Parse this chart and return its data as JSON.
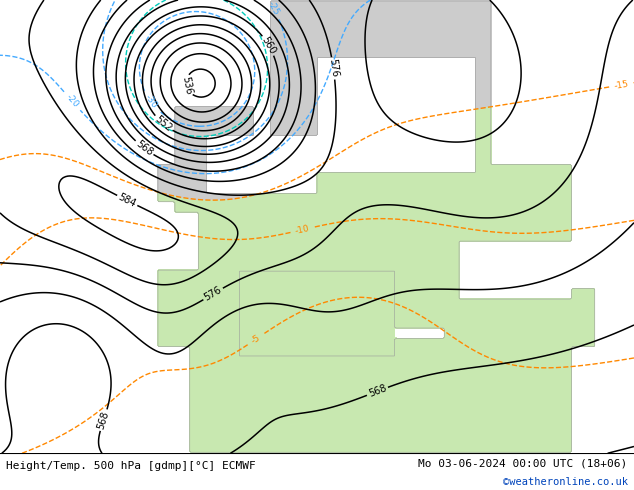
{
  "title_left": "Height/Temp. 500 hPa [gdmp][°C] ECMWF",
  "title_right": "Mo 03-06-2024 00:00 UTC (18+06)",
  "credit": "©weatheronline.co.uk",
  "land_warm_color": "#c8e8b0",
  "land_cool_color": "#cccccc",
  "sea_color": "#b8d4e8",
  "z500_color": "#000000",
  "temp_warm_color": "#ff8800",
  "temp_cold_color": "#44aaff",
  "temp_teal_color": "#00ccbb",
  "fig_width": 6.34,
  "fig_height": 4.9,
  "dpi": 100
}
